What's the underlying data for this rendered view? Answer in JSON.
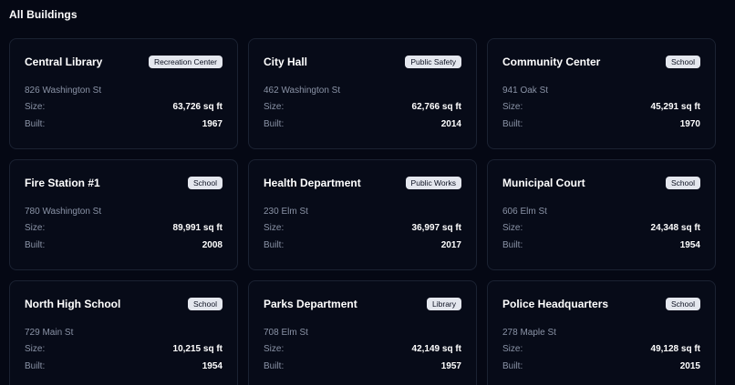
{
  "page": {
    "heading": "All Buildings"
  },
  "labels": {
    "size": "Size:",
    "built": "Built:"
  },
  "buildings": [
    {
      "name": "Central Library",
      "type": "Recreation Center",
      "address": "826 Washington St",
      "size": "63,726 sq ft",
      "built": "1967"
    },
    {
      "name": "City Hall",
      "type": "Public Safety",
      "address": "462 Washington St",
      "size": "62,766 sq ft",
      "built": "2014"
    },
    {
      "name": "Community Center",
      "type": "School",
      "address": "941 Oak St",
      "size": "45,291 sq ft",
      "built": "1970"
    },
    {
      "name": "Fire Station #1",
      "type": "School",
      "address": "780 Washington St",
      "size": "89,991 sq ft",
      "built": "2008"
    },
    {
      "name": "Health Department",
      "type": "Public Works",
      "address": "230 Elm St",
      "size": "36,997 sq ft",
      "built": "2017"
    },
    {
      "name": "Municipal Court",
      "type": "School",
      "address": "606 Elm St",
      "size": "24,348 sq ft",
      "built": "1954"
    },
    {
      "name": "North High School",
      "type": "School",
      "address": "729 Main St",
      "size": "10,215 sq ft",
      "built": "1954"
    },
    {
      "name": "Parks Department",
      "type": "Library",
      "address": "708 Elm St",
      "size": "42,149 sq ft",
      "built": "1957"
    },
    {
      "name": "Police Headquarters",
      "type": "School",
      "address": "278 Maple St",
      "size": "49,128 sq ft",
      "built": "2015"
    }
  ]
}
